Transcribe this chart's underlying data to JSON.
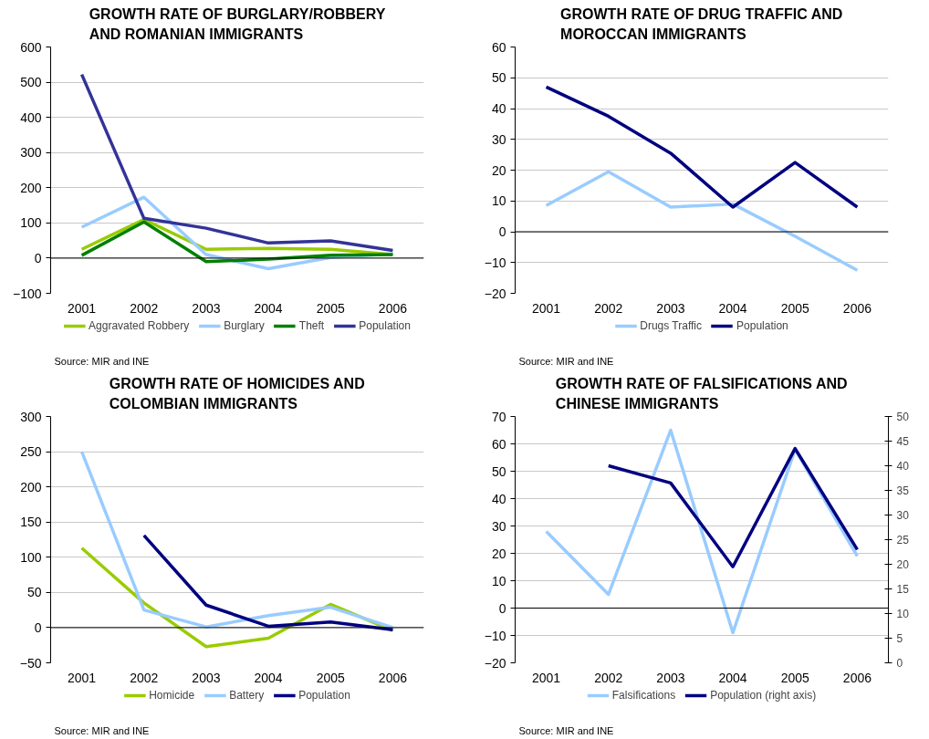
{
  "chart_data": [
    {
      "type": "line",
      "title": "GROWTH RATE OF BURGLARY/ROBBERY AND ROMANIAN IMMIGRANTS",
      "categories": [
        "2001",
        "2002",
        "2003",
        "2004",
        "2005",
        "2006"
      ],
      "ylim": [
        -100,
        600
      ],
      "yticks": [
        -100,
        0,
        100,
        200,
        300,
        400,
        500,
        600
      ],
      "grid": "y",
      "legend": "bottom",
      "marker": "none",
      "line_style": "solid",
      "series": [
        {
          "name": "Aggravated Robbery",
          "color": "#99cc00",
          "values": [
            25,
            110,
            25,
            28,
            25,
            10
          ]
        },
        {
          "name": "Burglary",
          "color": "#99ccff",
          "values": [
            88,
            173,
            10,
            -30,
            2,
            12
          ]
        },
        {
          "name": "Theft",
          "color": "#008000",
          "values": [
            8,
            103,
            -10,
            -3,
            8,
            10
          ]
        },
        {
          "name": "Population",
          "color": "#333399",
          "values": [
            522,
            113,
            85,
            43,
            49,
            22
          ]
        }
      ],
      "annotations": [
        "Source: MIR and INE"
      ]
    },
    {
      "type": "line",
      "title": "GROWTH RATE OF DRUG TRAFFIC AND MOROCCAN IMMIGRANTS",
      "categories": [
        "2001",
        "2002",
        "2003",
        "2004",
        "2005",
        "2006"
      ],
      "ylim": [
        -20,
        60
      ],
      "yticks": [
        -20,
        -10,
        0,
        10,
        20,
        30,
        40,
        50,
        60
      ],
      "grid": "y",
      "legend": "bottom",
      "marker": "none",
      "line_style": "solid",
      "series": [
        {
          "name": "Drugs Traffic",
          "color": "#99ccff",
          "values": [
            8.5,
            19.5,
            8,
            9,
            -1.5,
            -12.5
          ]
        },
        {
          "name": "Population",
          "color": "#000080",
          "values": [
            47,
            37.5,
            25.5,
            8,
            22.5,
            8
          ]
        }
      ],
      "annotations": [
        "Source: MIR and INE"
      ]
    },
    {
      "type": "line",
      "title": "GROWTH RATE OF HOMICIDES AND COLOMBIAN IMMIGRANTS",
      "categories": [
        "2001",
        "2002",
        "2003",
        "2004",
        "2005",
        "2006"
      ],
      "ylim": [
        -50,
        300
      ],
      "yticks": [
        -50,
        0,
        50,
        100,
        150,
        200,
        250,
        300
      ],
      "grid": "y",
      "legend": "bottom",
      "marker": "none",
      "line_style": "solid",
      "series": [
        {
          "name": "Homicide",
          "color": "#99cc00",
          "values": [
            113,
            35,
            -27,
            -15,
            33,
            -4
          ]
        },
        {
          "name": "Battery",
          "color": "#99ccff",
          "values": [
            250,
            25,
            1,
            17,
            29,
            0
          ]
        },
        {
          "name": "Population",
          "color": "#000080",
          "values": [
            null,
            131,
            32,
            2,
            8,
            -3
          ]
        }
      ],
      "annotations": [
        "Source: MIR and INE"
      ]
    },
    {
      "type": "line",
      "title": "GROWTH RATE OF FALSIFICATIONS AND CHINESE IMMIGRANTS",
      "categories": [
        "2001",
        "2002",
        "2003",
        "2004",
        "2005",
        "2006"
      ],
      "ylim": [
        -20,
        70
      ],
      "yticks": [
        -20,
        -10,
        0,
        10,
        20,
        30,
        40,
        50,
        60,
        70
      ],
      "y2lim": [
        0,
        50
      ],
      "y2ticks": [
        0,
        5,
        10,
        15,
        20,
        25,
        30,
        35,
        40,
        45,
        50
      ],
      "grid": "y",
      "legend": "bottom",
      "marker": "none",
      "line_style": "solid",
      "series": [
        {
          "name": "Falsifications",
          "color": "#99ccff",
          "values": [
            28,
            5,
            65,
            -9,
            58,
            19
          ]
        },
        {
          "name": "Population (right axis)",
          "color": "#000080",
          "axis": "y2",
          "values": [
            null,
            40,
            36.5,
            19.5,
            43.5,
            23
          ]
        }
      ],
      "annotations": [
        "Source: MIR and INE"
      ]
    }
  ]
}
